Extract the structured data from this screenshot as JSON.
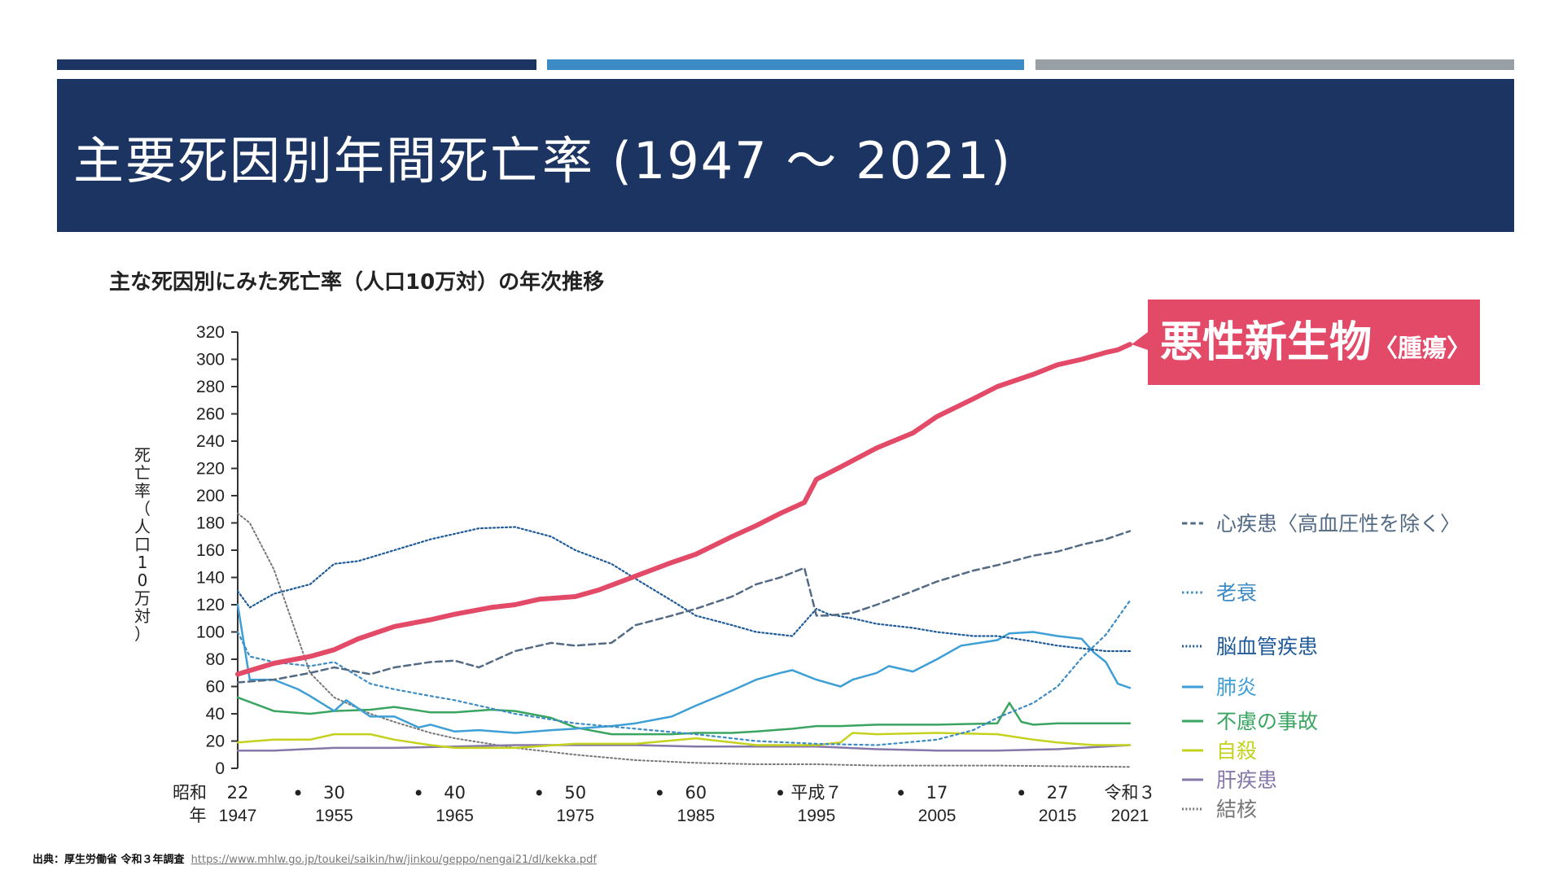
{
  "slide": {
    "title": "主要死因別年間死亡率 (1947 ～ 2021)",
    "source_label": "出典：厚生労働省 令和３年調査",
    "source_url": "https://www.mhlw.go.jp/toukei/saikin/hw/jinkou/geppo/nengai21/dl/kekka.pdf"
  },
  "colors": {
    "navy": "#1c3461",
    "blue": "#3d8bc4",
    "gray": "#98a0a6",
    "cancer": "#e24a68"
  },
  "chart_data": {
    "type": "line",
    "title": "主な死因別にみた死亡率（人口10万対）の年次推移",
    "ylabel": "死亡率（人口10万対）",
    "ylim": [
      0,
      320
    ],
    "yticks": [
      0,
      20,
      40,
      60,
      80,
      100,
      120,
      140,
      160,
      180,
      200,
      220,
      240,
      260,
      280,
      300,
      320
    ],
    "xlim": [
      1947,
      2021
    ],
    "era_label": "昭和",
    "year_label": "年",
    "xticks": [
      {
        "x": 1947,
        "era": "22",
        "year": "1947"
      },
      {
        "x": 1955,
        "era": "30",
        "year": "1955"
      },
      {
        "x": 1965,
        "era": "40",
        "year": "1965"
      },
      {
        "x": 1975,
        "era": "50",
        "year": "1975"
      },
      {
        "x": 1985,
        "era": "60",
        "year": "1985"
      },
      {
        "x": 1995,
        "era": "平成７",
        "year": "1995"
      },
      {
        "x": 2005,
        "era": "17",
        "year": "2005"
      },
      {
        "x": 2015,
        "era": "27",
        "year": "2015"
      },
      {
        "x": 2021,
        "era": "令和３",
        "year": "2021"
      }
    ],
    "dot_ticks": [
      1952,
      1962,
      1972,
      1982,
      1992,
      2002,
      2012
    ],
    "highlight_label": "悪性新生物",
    "highlight_sub": "〈腫瘍〉",
    "series": [
      {
        "name": "悪性新生物",
        "color": "#e24a68",
        "width": 6,
        "dash": "",
        "legend": false,
        "x": [
          1947,
          1950,
          1953,
          1955,
          1957,
          1960,
          1963,
          1965,
          1968,
          1970,
          1972,
          1975,
          1977,
          1980,
          1983,
          1985,
          1988,
          1990,
          1992,
          1994,
          1995,
          1997,
          2000,
          2003,
          2005,
          2008,
          2010,
          2013,
          2015,
          2017,
          2019,
          2020,
          2021
        ],
        "y": [
          69,
          77,
          82,
          87,
          95,
          104,
          109,
          113,
          118,
          120,
          124,
          126,
          131,
          141,
          151,
          157,
          170,
          178,
          187,
          195,
          212,
          221,
          235,
          246,
          258,
          271,
          280,
          289,
          296,
          300,
          305,
          307,
          311
        ]
      },
      {
        "name": "心疾患〈高血圧性を除く〉",
        "color": "#536a84",
        "width": 2.5,
        "dash": "8,5",
        "legend": true,
        "x": [
          1947,
          1950,
          1953,
          1955,
          1958,
          1960,
          1963,
          1965,
          1967,
          1970,
          1973,
          1975,
          1978,
          1980,
          1983,
          1985,
          1988,
          1990,
          1992,
          1994,
          1995,
          1996,
          1998,
          2000,
          2003,
          2005,
          2008,
          2010,
          2013,
          2015,
          2017,
          2019,
          2021
        ],
        "y": [
          63,
          65,
          70,
          74,
          69,
          74,
          78,
          79,
          74,
          86,
          92,
          90,
          92,
          105,
          112,
          117,
          126,
          135,
          140,
          147,
          112,
          112,
          114,
          120,
          130,
          137,
          145,
          149,
          156,
          159,
          164,
          168,
          174
        ]
      },
      {
        "name": "老衰",
        "color": "#3d8bc4",
        "width": 2.2,
        "dash": "3,4",
        "legend": true,
        "x": [
          1947,
          1948,
          1950,
          1953,
          1955,
          1958,
          1960,
          1963,
          1965,
          1970,
          1975,
          1980,
          1985,
          1990,
          1995,
          2000,
          2005,
          2008,
          2010,
          2013,
          2015,
          2017,
          2019,
          2021
        ],
        "y": [
          100,
          82,
          78,
          75,
          78,
          62,
          58,
          53,
          50,
          40,
          33,
          29,
          25,
          20,
          18,
          17,
          21,
          28,
          37,
          48,
          60,
          81,
          98,
          123
        ]
      },
      {
        "name": "脳血管疾患",
        "color": "#1f5a99",
        "width": 2.2,
        "dash": "2,3",
        "legend": true,
        "x": [
          1947,
          1948,
          1950,
          1953,
          1955,
          1957,
          1960,
          1963,
          1965,
          1967,
          1970,
          1973,
          1975,
          1978,
          1980,
          1983,
          1985,
          1988,
          1990,
          1993,
          1995,
          1996,
          1998,
          2000,
          2003,
          2005,
          2008,
          2010,
          2013,
          2015,
          2017,
          2019,
          2021
        ],
        "y": [
          130,
          118,
          128,
          135,
          150,
          152,
          160,
          168,
          172,
          176,
          177,
          170,
          160,
          150,
          139,
          123,
          112,
          105,
          100,
          97,
          117,
          113,
          110,
          106,
          103,
          100,
          97,
          97,
          93,
          90,
          88,
          86,
          86
        ]
      },
      {
        "name": "肺炎",
        "color": "#3d9fd6",
        "width": 2.5,
        "dash": "",
        "legend": true,
        "x": [
          1947,
          1948,
          1950,
          1952,
          1953,
          1955,
          1956,
          1958,
          1960,
          1962,
          1963,
          1965,
          1967,
          1970,
          1973,
          1975,
          1978,
          1980,
          1983,
          1985,
          1988,
          1990,
          1992,
          1993,
          1995,
          1997,
          1998,
          2000,
          2001,
          2003,
          2005,
          2007,
          2010,
          2011,
          2013,
          2015,
          2017,
          2018,
          2019,
          2020,
          2021
        ],
        "y": [
          120,
          65,
          65,
          58,
          53,
          42,
          50,
          38,
          38,
          30,
          32,
          27,
          28,
          26,
          28,
          29,
          31,
          33,
          38,
          46,
          57,
          65,
          70,
          72,
          65,
          60,
          65,
          70,
          75,
          71,
          80,
          90,
          94,
          99,
          100,
          97,
          95,
          85,
          78,
          62,
          59
        ]
      },
      {
        "name": "不慮の事故",
        "color": "#3aa560",
        "width": 2.5,
        "dash": "",
        "legend": true,
        "x": [
          1947,
          1950,
          1953,
          1955,
          1958,
          1960,
          1963,
          1965,
          1968,
          1970,
          1973,
          1975,
          1978,
          1980,
          1983,
          1985,
          1988,
          1990,
          1993,
          1995,
          1997,
          2000,
          2005,
          2010,
          2011,
          2012,
          2013,
          2015,
          2017,
          2021
        ],
        "y": [
          52,
          42,
          40,
          42,
          43,
          45,
          41,
          41,
          43,
          42,
          37,
          30,
          25,
          25,
          25,
          26,
          26,
          27,
          29,
          31,
          31,
          32,
          32,
          33,
          48,
          34,
          32,
          33,
          33,
          33
        ]
      },
      {
        "name": "自殺",
        "color": "#c4d21e",
        "width": 2.5,
        "dash": "",
        "legend": true,
        "x": [
          1947,
          1950,
          1953,
          1955,
          1958,
          1960,
          1963,
          1965,
          1970,
          1975,
          1980,
          1985,
          1990,
          1995,
          1997,
          1998,
          2000,
          2005,
          2010,
          2013,
          2015,
          2018,
          2021
        ],
        "y": [
          19,
          21,
          21,
          25,
          25,
          21,
          17,
          15,
          15,
          18,
          18,
          22,
          17,
          17,
          19,
          26,
          25,
          26,
          25,
          21,
          19,
          17,
          17
        ]
      },
      {
        "name": "肝疾患",
        "color": "#8577a8",
        "width": 2.5,
        "dash": "",
        "legend": true,
        "x": [
          1947,
          1950,
          1955,
          1960,
          1965,
          1970,
          1975,
          1980,
          1985,
          1990,
          1995,
          2000,
          2005,
          2010,
          2015,
          2021
        ],
        "y": [
          13,
          13,
          15,
          15,
          16,
          17,
          17,
          17,
          16,
          16,
          16,
          14,
          13,
          13,
          14,
          17
        ]
      },
      {
        "name": "結核",
        "color": "#777777",
        "width": 2,
        "dash": "2,3",
        "legend": true,
        "x": [
          1947,
          1948,
          1950,
          1953,
          1955,
          1958,
          1960,
          1963,
          1965,
          1970,
          1975,
          1980,
          1985,
          1990,
          1995,
          2000,
          2010,
          2021
        ],
        "y": [
          187,
          180,
          146,
          70,
          52,
          40,
          34,
          26,
          22,
          15,
          10,
          6,
          4,
          3,
          3,
          2,
          2,
          1
        ]
      }
    ]
  }
}
